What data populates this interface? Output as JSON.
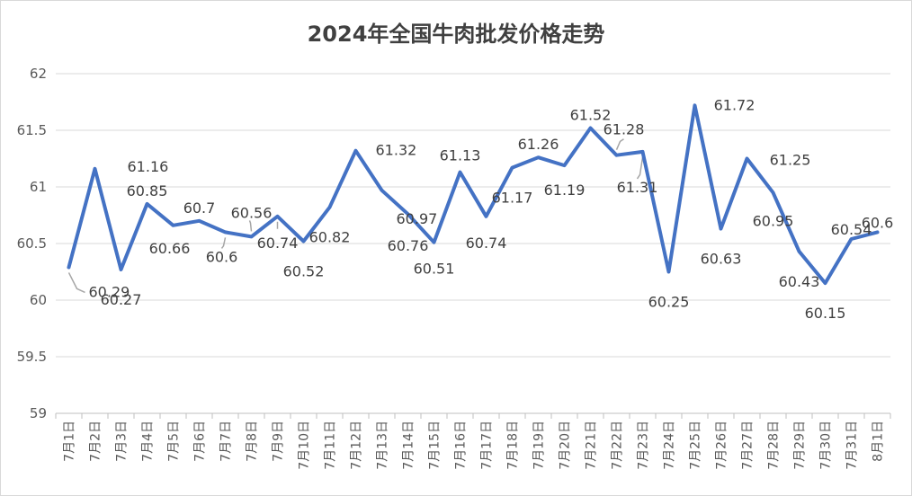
{
  "chart_data": {
    "type": "line",
    "title": "2024年全国牛肉批发价格走势",
    "xlabel": "",
    "ylabel": "",
    "ylim": [
      59,
      62
    ],
    "yticks": [
      "59",
      "59.5",
      "60",
      "60.5",
      "61",
      "61.5",
      "62"
    ],
    "categories": [
      "7月1日",
      "7月2日",
      "7月3日",
      "7月4日",
      "7月5日",
      "7月6日",
      "7月7日",
      "7月8日",
      "7月9日",
      "7月10日",
      "7月11日",
      "7月12日",
      "7月13日",
      "7月14日",
      "7月15日",
      "7月16日",
      "7月17日",
      "7月18日",
      "7月19日",
      "7月20日",
      "7月21日",
      "7月22日",
      "7月23日",
      "7月24日",
      "7月25日",
      "7月26日",
      "7月27日",
      "7月28日",
      "7月29日",
      "7月30日",
      "7月31日",
      "8月1日"
    ],
    "values": [
      60.29,
      61.16,
      60.27,
      60.85,
      60.66,
      60.7,
      60.6,
      60.56,
      60.74,
      60.52,
      60.82,
      61.32,
      60.97,
      60.76,
      60.51,
      61.13,
      60.74,
      61.17,
      61.26,
      61.19,
      61.52,
      61.28,
      61.31,
      60.25,
      61.72,
      60.63,
      61.25,
      60.95,
      60.43,
      60.15,
      60.54,
      60.6
    ],
    "value_labels": [
      "60.29",
      "61.16",
      "60.27",
      "60.85",
      "60.66",
      "60.7",
      "60.6",
      "60.56",
      "60.74",
      "60.52",
      "60.82",
      "61.32",
      "60.97",
      "60.76",
      "60.51",
      "61.13",
      "60.74",
      "61.17",
      "61.26",
      "61.19",
      "61.52",
      "61.28",
      "61.31",
      "60.25",
      "61.72",
      "60.63",
      "61.25",
      "60.95",
      "60.43",
      "60.15",
      "60.54",
      "60.6"
    ],
    "grid": true,
    "legend": "none",
    "line_color": "#4472C4"
  }
}
